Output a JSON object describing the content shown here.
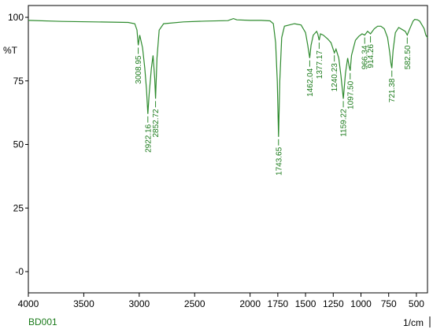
{
  "chart_data": {
    "type": "line",
    "sample": "BD001",
    "ylabel": "%T",
    "xunit": "1/cm",
    "xlim": [
      4000,
      400
    ],
    "ylim": [
      0,
      100
    ],
    "x_ticks": [
      {
        "value": 4000,
        "label": "4000"
      },
      {
        "value": 3500,
        "label": "3500"
      },
      {
        "value": 3000,
        "label": "3000"
      },
      {
        "value": 2500,
        "label": "2500"
      },
      {
        "value": 2000,
        "label": "2000"
      },
      {
        "value": 1750,
        "label": "1750"
      },
      {
        "value": 1500,
        "label": "1500"
      },
      {
        "value": 1250,
        "label": "1250"
      },
      {
        "value": 1000,
        "label": "1000"
      },
      {
        "value": 750,
        "label": "750"
      },
      {
        "value": 500,
        "label": "500"
      }
    ],
    "y_ticks": [
      {
        "value": 100,
        "label": "100"
      },
      {
        "value": 75,
        "label": "75"
      },
      {
        "value": 50,
        "label": "50"
      },
      {
        "value": 25,
        "label": "25"
      },
      {
        "value": 0,
        "label": "-0"
      }
    ],
    "series_color": "#2e8b2e",
    "spectrum": [
      [
        4000,
        98.8
      ],
      [
        3700,
        98.4
      ],
      [
        3400,
        98.2
      ],
      [
        3100,
        98.0
      ],
      [
        3040,
        97.5
      ],
      [
        3020,
        95.0
      ],
      [
        3008.95,
        89.0
      ],
      [
        2995,
        93.0
      ],
      [
        2970,
        88.0
      ],
      [
        2950,
        80.0
      ],
      [
        2935,
        72.0
      ],
      [
        2922.16,
        62.0
      ],
      [
        2910,
        70.0
      ],
      [
        2890,
        80.0
      ],
      [
        2875,
        85.0
      ],
      [
        2860,
        76.0
      ],
      [
        2852.72,
        68.0
      ],
      [
        2840,
        84.0
      ],
      [
        2820,
        95.0
      ],
      [
        2780,
        97.5
      ],
      [
        2600,
        98.2
      ],
      [
        2400,
        98.5
      ],
      [
        2200,
        98.7
      ],
      [
        2150,
        99.5
      ],
      [
        2120,
        99.0
      ],
      [
        2000,
        98.8
      ],
      [
        1900,
        98.8
      ],
      [
        1820,
        98.6
      ],
      [
        1790,
        97.5
      ],
      [
        1770,
        90.0
      ],
      [
        1755,
        75.0
      ],
      [
        1743.65,
        53.0
      ],
      [
        1732,
        75.0
      ],
      [
        1715,
        92.0
      ],
      [
        1690,
        96.5
      ],
      [
        1600,
        97.5
      ],
      [
        1540,
        97.0
      ],
      [
        1500,
        94.0
      ],
      [
        1480,
        89.0
      ],
      [
        1462.04,
        84.0
      ],
      [
        1450,
        89.0
      ],
      [
        1430,
        93.0
      ],
      [
        1400,
        94.5
      ],
      [
        1390,
        93.5
      ],
      [
        1377.17,
        91.0
      ],
      [
        1365,
        93.5
      ],
      [
        1340,
        93.0
      ],
      [
        1300,
        91.5
      ],
      [
        1270,
        90.0
      ],
      [
        1240.23,
        86.0
      ],
      [
        1225,
        87.5
      ],
      [
        1200,
        84.0
      ],
      [
        1180,
        77.0
      ],
      [
        1159.22,
        68.0
      ],
      [
        1140,
        78.0
      ],
      [
        1120,
        84.0
      ],
      [
        1108,
        81.0
      ],
      [
        1097.5,
        79.0
      ],
      [
        1085,
        85.0
      ],
      [
        1050,
        91.0
      ],
      [
        1020,
        92.5
      ],
      [
        990,
        93.5
      ],
      [
        966.34,
        93.0
      ],
      [
        940,
        94.5
      ],
      [
        914.26,
        93.5
      ],
      [
        880,
        95.5
      ],
      [
        850,
        96.5
      ],
      [
        820,
        96.5
      ],
      [
        790,
        95.5
      ],
      [
        760,
        92.0
      ],
      [
        740,
        86.0
      ],
      [
        730,
        82.0
      ],
      [
        721.38,
        80.0
      ],
      [
        710,
        87.0
      ],
      [
        690,
        94.0
      ],
      [
        660,
        96.0
      ],
      [
        620,
        95.0
      ],
      [
        600,
        94.5
      ],
      [
        582.5,
        93.0
      ],
      [
        565,
        95.0
      ],
      [
        545,
        97.0
      ],
      [
        530,
        98.5
      ],
      [
        515,
        99.2
      ],
      [
        490,
        99.0
      ],
      [
        470,
        98.5
      ],
      [
        450,
        97.0
      ],
      [
        430,
        95.5
      ],
      [
        415,
        93.0
      ],
      [
        400,
        92.0
      ]
    ],
    "peaks": [
      {
        "x": 3008.95,
        "label": "3008.95"
      },
      {
        "x": 2922.16,
        "label": "2922.16"
      },
      {
        "x": 2852.72,
        "label": "2852.72"
      },
      {
        "x": 1743.65,
        "label": "1743.65"
      },
      {
        "x": 1462.04,
        "label": "1462.04"
      },
      {
        "x": 1377.17,
        "label": "1377.17"
      },
      {
        "x": 1240.23,
        "label": "1240.23"
      },
      {
        "x": 1159.22,
        "label": "1159.22"
      },
      {
        "x": 1097.5,
        "label": "1097.50"
      },
      {
        "x": 966.34,
        "label": "966.34"
      },
      {
        "x": 914.26,
        "label": "914.26"
      },
      {
        "x": 721.38,
        "label": "721.38"
      },
      {
        "x": 582.5,
        "label": "582.50"
      }
    ]
  }
}
